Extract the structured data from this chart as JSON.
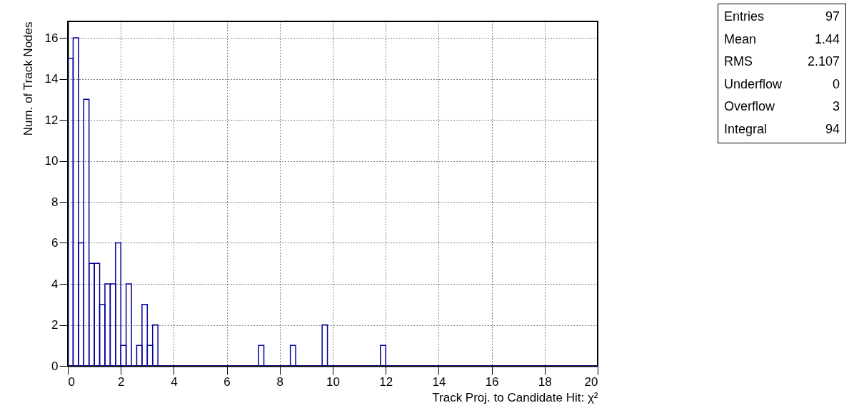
{
  "chart_data": {
    "type": "histogram",
    "xlabel": "Track Proj. to Candidate Hit: χ²",
    "ylabel": "Num. of Track Nodes",
    "bins": [
      0,
      0.2,
      0.4,
      0.6,
      0.8,
      1,
      1.2,
      1.4,
      1.6,
      1.8,
      2,
      2.2,
      2.4,
      2.6,
      2.8,
      3,
      3.2,
      3.4,
      3.6,
      3.8,
      4,
      4.2,
      4.4,
      4.6,
      4.8,
      5,
      5.2,
      5.4,
      5.6,
      5.8,
      6,
      6.2,
      6.4,
      6.6,
      6.8,
      7,
      7.2,
      7.4,
      7.6,
      7.8,
      8,
      8.2,
      8.4,
      8.6,
      8.8,
      9,
      9.2,
      9.4,
      9.6,
      9.8,
      10,
      10.2,
      10.4,
      10.6,
      10.8,
      11,
      11.2,
      11.4,
      11.6,
      11.8,
      12,
      12.2,
      12.4,
      12.6,
      12.8,
      13,
      13.2,
      13.4,
      13.6,
      13.8,
      14,
      14.2,
      14.4,
      14.6,
      14.8,
      15,
      15.2,
      15.4,
      15.6,
      15.8,
      16,
      16.2,
      16.4,
      16.6,
      16.8,
      17,
      17.2,
      17.4,
      17.6,
      17.8,
      18,
      18.2,
      18.4,
      18.6,
      18.8,
      19,
      19.2,
      19.4,
      19.6,
      19.8,
      20
    ],
    "values": [
      15,
      16,
      6,
      13,
      5,
      5,
      3,
      4,
      4,
      6,
      1,
      4,
      0,
      1,
      3,
      1,
      2,
      0,
      0,
      0,
      0,
      0,
      0,
      0,
      0,
      0,
      0,
      0,
      0,
      0,
      0,
      0,
      0,
      0,
      0,
      0,
      1,
      0,
      0,
      0,
      0,
      0,
      1,
      0,
      0,
      0,
      0,
      0,
      2,
      0,
      0,
      0,
      0,
      0,
      0,
      0,
      0,
      0,
      0,
      1,
      0,
      0,
      0,
      0,
      0,
      0,
      0,
      0,
      0,
      0,
      0,
      0,
      0,
      0,
      0,
      0,
      0,
      0,
      0,
      0,
      0,
      0,
      0,
      0,
      0,
      0,
      0,
      0,
      0,
      0,
      0,
      0,
      0,
      0,
      0,
      0,
      0,
      0,
      0,
      0
    ],
    "color": "#000099",
    "xlim": [
      0,
      20
    ],
    "xticks": [
      0,
      2,
      4,
      6,
      8,
      10,
      12,
      14,
      16,
      18,
      20
    ],
    "ylim": [
      0,
      16.8
    ],
    "yticks": [
      0,
      2,
      4,
      6,
      8,
      10,
      12,
      14,
      16
    ],
    "grid": true,
    "annotations": [
      "Entries 97",
      "Mean 1.44",
      "RMS 2.107",
      "Underflow 0",
      "Overflow 3",
      "Integral 94"
    ]
  }
}
